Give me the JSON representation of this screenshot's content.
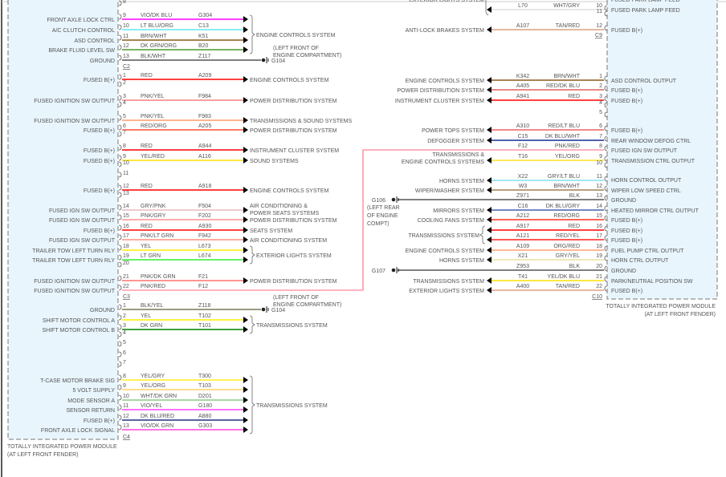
{
  "left": {
    "module_name": "TOTALLY INTEGRATED POWER MODULE",
    "module_location": "(AT LEFT FRONT FENDER)",
    "blocks": [
      {
        "connector": "C2",
        "pins": [
          {
            "pin": "8"
          },
          {
            "pin": "9",
            "label": "FRONT AXLE LOCK CTRL",
            "color": "VIO/DK BLU",
            "circuit": "G304",
            "hex": "#ff00ff"
          },
          {
            "pin": "10",
            "label": "A/C CLUTCH CONTROL",
            "color": "LT BLU/ORG",
            "circuit": "C13",
            "hex": "#5fe8f2"
          },
          {
            "pin": "11",
            "label": "ASD CONTROL",
            "color": "BRN/WHT",
            "circuit": "K51",
            "hex": "#8b5a1a"
          },
          {
            "pin": "12",
            "label": "BRAKE FLUID LEVEL SW",
            "color": "DK GRN/ORG",
            "circuit": "B20",
            "hex": "#4a9a2a"
          },
          {
            "pin": "13",
            "label": "GROUND",
            "color": "BLK/WHT",
            "circuit": "Z117",
            "hex": "#555555",
            "ground": {
              "id": "G104",
              "location": [
                "(LEFT FRONT OF",
                "ENGINE COMPARTMENT)"
              ]
            }
          }
        ],
        "groups": [
          {
            "from": 1,
            "to": 4,
            "dest": [
              "ENGINE CONTROLS SYSTEM"
            ]
          }
        ]
      },
      {
        "connector": "C3",
        "pins": [
          {
            "pin": "1",
            "label": "FUSED B(+)",
            "color": "RED",
            "circuit": "A209",
            "hex": "#ff0000",
            "dest": [
              "ENGINE CONTROLS SYSTEM"
            ]
          },
          {
            "pin": "2"
          },
          {
            "pin": "3",
            "label": "FUSED IGNITION SW OUTPUT",
            "color": "PNK/YEL",
            "circuit": "F984",
            "hex": "#ff8080",
            "dest": [
              "POWER DISTRIBUTION SYSTEM"
            ]
          },
          {
            "pin": "4"
          },
          {
            "pin": "5",
            "label": "FUSED IGNITION SW OUTPUT",
            "color": "PNK/YEL",
            "circuit": "F983",
            "hex": "#ff9a70",
            "dest": [
              "TRANSMISSIONS & SOUND SYSTEMS"
            ]
          },
          {
            "pin": "6",
            "label": "FUSED B(+)",
            "color": "RED/ORG",
            "circuit": "A205",
            "hex": "#ff5030",
            "dest": [
              "POWER DISTRIBUTION SYSTEM"
            ]
          },
          {
            "pin": "7"
          },
          {
            "pin": "8",
            "label": "FUSED B(+)",
            "color": "RED",
            "circuit": "A944",
            "hex": "#ff0000",
            "dest": [
              "INSTRUMENT CLUSTER SYSTEM"
            ]
          },
          {
            "pin": "9",
            "label": "FUSED B(+)",
            "color": "YEL/RED",
            "circuit": "A116",
            "hex": "#ffdd00",
            "dest": [
              "SOUND SYSTEMS"
            ]
          },
          {
            "pin": "10"
          },
          {
            "pin": "11"
          },
          {
            "pin": "12",
            "label": "FUSED B(+)",
            "color": "RED",
            "circuit": "A918",
            "hex": "#ff0000",
            "dest": [
              "ENGINE CONTROLS SYSTEM"
            ]
          },
          {
            "pin": "13"
          },
          {
            "pin": "14",
            "label": "FUSED IGN SW OUTPUT",
            "color": "GRY/PNK",
            "circuit": "F504",
            "hex": "#e8b8c0",
            "dest": [
              "AIR CONDITIONING &",
              "POWER SEATS SYSTEMS"
            ]
          },
          {
            "pin": "15",
            "label": "FUSED IGN SW OUTPUT",
            "color": "PNK/GRY",
            "circuit": "F202",
            "hex": "#ff9090",
            "dest": [
              "POWER DISTRIBUTION SYSTEM"
            ]
          },
          {
            "pin": "16",
            "label": "FUSED B(+)",
            "color": "RED",
            "circuit": "A930",
            "hex": "#ff0000",
            "dest": [
              "SEATS SYSTEM"
            ]
          },
          {
            "pin": "17",
            "label": "FUSED IGN SW OUTPUT",
            "color": "PNK/LT GRN",
            "circuit": "F942",
            "hex": "#ff9080",
            "dest": [
              "AIR CONDITIONING SYSTEM"
            ]
          },
          {
            "pin": "18",
            "label": "TRAILER TOW LEFT TURN RLY",
            "color": "YEL",
            "circuit": "L673",
            "hex": "#ffee00"
          },
          {
            "pin": "19",
            "label": "TRAILER TOW LEFT TURN RLY",
            "color": "LT GRN",
            "circuit": "L674",
            "hex": "#33ee33"
          },
          {
            "pin": "20"
          },
          {
            "pin": "21",
            "label": "FUSED IGNITION SW OUTPUT",
            "color": "PNK/DK GRN",
            "circuit": "F21",
            "hex": "#ff7070",
            "dest": [
              "POWER DISTRIBUTION SYSTEM"
            ]
          },
          {
            "pin": "22",
            "label": "FUSED IGNITION SW OUTPUT",
            "color": "PNK/RED",
            "circuit": "F12",
            "hex": "#ff98a8",
            "link": true
          }
        ],
        "groups": [
          {
            "from": 17,
            "to": 18,
            "dest": [
              "EXTERIOR LIGHTS SYSTEM"
            ]
          }
        ]
      },
      {
        "connector": "C4",
        "pins": [
          {
            "pin": "1",
            "label": "GROUND",
            "color": "BLK/YEL",
            "circuit": "Z118",
            "hex": "#7a7a50",
            "ground": {
              "id": "G104",
              "location": [
                "(LEFT FRONT OF",
                "ENGINE COMPARTMENT)"
              ]
            }
          },
          {
            "pin": "2",
            "label": "SHIFT MOTOR CONTROL A",
            "color": "YEL",
            "circuit": "T102",
            "hex": "#ffee00"
          },
          {
            "pin": "3",
            "label": "SHIFT MOTOR CONTROL B",
            "color": "DK GRN",
            "circuit": "T101",
            "hex": "#008000"
          },
          {
            "pin": "4"
          },
          {
            "pin": "5"
          },
          {
            "pin": "6"
          },
          {
            "pin": "7"
          },
          {
            "pin": "8",
            "label": "T-CASE MOTOR BRAKE SIG",
            "color": "YEL/GRY",
            "circuit": "T300",
            "hex": "#ffee22"
          },
          {
            "pin": "9",
            "label": "5 VOLT SUPPLY",
            "color": "YEL/ORG",
            "circuit": "T103",
            "hex": "#ffd060"
          },
          {
            "pin": "10",
            "label": "MODE SENSOR A",
            "color": "WHT/DK GRN",
            "circuit": "D201",
            "hex": "#88cc88"
          },
          {
            "pin": "11",
            "label": "SENSOR RETURN",
            "color": "VIO/YEL",
            "circuit": "G180",
            "hex": "#ff44ff"
          },
          {
            "pin": "12",
            "label": "FUSED B(+)",
            "color": "DK BLU/RED",
            "circuit": "A880",
            "hex": "#203080"
          },
          {
            "pin": "13",
            "label": "FRONT AXLE LOCK SIGNAL",
            "color": "VIO/DK GRN",
            "circuit": "G303",
            "hex": "#ff44dd"
          }
        ],
        "groups": [
          {
            "from": 1,
            "to": 2,
            "dest": [
              "TRANSMISSIONS SYSTEM"
            ]
          },
          {
            "from": 7,
            "to": 12,
            "dest": [
              "TRANSMISSIONS SYSTEM"
            ]
          }
        ]
      }
    ]
  },
  "right": {
    "module_name": "TOTALLY INTEGRATED POWER MODULE",
    "module_location": "(AT LEFT FRONT FENDER)",
    "top_cut_label": "FUSED PARK LAMP FEED",
    "top_cut_dest": "EXTERIOR LIGHTS SYSTEM",
    "blocks": [
      {
        "connector": "C9",
        "pins": [
          {
            "pin": "10",
            "label": "FUSED PARK LAMP FEED",
            "color": "WHT/GRY",
            "circuit": "L70",
            "hex": "#dddddd",
            "bracket_top": true
          },
          {
            "pin": "11"
          },
          {
            "pin": "12",
            "label": "FUSED B(+)",
            "color": "TAN/RED",
            "circuit": "A107",
            "hex": "#d8a080",
            "dest": [
              "ANTI-LOCK BRAKES SYSTEM"
            ]
          }
        ],
        "groups": []
      },
      {
        "connector": "C10",
        "pins": [
          {
            "pin": "1",
            "label": "ASD CONTROL OUTPUT",
            "color": "BRN/WHT",
            "circuit": "K342",
            "hex": "#8b5a1a",
            "dest": [
              "ENGINE CONTROLS SYSTEM"
            ]
          },
          {
            "pin": "2",
            "label": "FUSED B(+)",
            "color": "RED/DK BLU",
            "circuit": "A405",
            "hex": "#e06060",
            "dest": [
              "POWER DISTRIBUTION SYSTEM"
            ]
          },
          {
            "pin": "3",
            "label": "FUSED B(+)",
            "color": "RED",
            "circuit": "A941",
            "hex": "#ff0000",
            "dest": [
              "INSTRUMENT CLUSTER SYSTEM"
            ]
          },
          {
            "pin": "4"
          },
          {
            "pin": "5"
          },
          {
            "pin": "6",
            "label": "FUSED B(+)",
            "color": "RED/LT BLU",
            "circuit": "A310",
            "hex": "#f06060",
            "dest": [
              "POWER TOPS SYSTEM"
            ]
          },
          {
            "pin": "7",
            "label": "REAR WINDOW DEFOG CTRL",
            "color": "DK BLU/WHT",
            "circuit": "C15",
            "hex": "#103090",
            "dest": [
              "DEFOGGER SYSTEM"
            ]
          },
          {
            "pin": "8",
            "label": "FUSED IGN SW OUTPUT",
            "color": "PNK/RED",
            "circuit": "F12",
            "hex": "#ff98a8",
            "link": true
          },
          {
            "pin": "9",
            "label": "TRANSMISSION CTRL OUTPUT",
            "color": "YEL/ORG",
            "circuit": "T16",
            "hex": "#ffe020",
            "dest": [
              "TRANSMISSIONS &",
              "ENGINE CONTROLS SYSTEMS"
            ]
          },
          {
            "pin": "10"
          },
          {
            "pin": "11",
            "label": "HORN CONTROL OUTPUT",
            "color": "GRY/LT BLU",
            "circuit": "X22",
            "hex": "#80e0f0",
            "dest": [
              "HORNS SYSTEM"
            ]
          },
          {
            "pin": "12",
            "label": "WIPER LOW SPEED CTRL",
            "color": "BRN/WHT",
            "circuit": "W3",
            "hex": "#a08050",
            "dest": [
              "WIPER/WASHER SYSTEM"
            ]
          },
          {
            "pin": "13",
            "label": "GROUND",
            "color": "BLK",
            "circuit": "Z971",
            "hex": "#555555",
            "ground": {
              "id": "G106",
              "location": [
                "(LEFT REAR",
                "OF ENGINE",
                "COMPT)"
              ]
            }
          },
          {
            "pin": "14",
            "label": "HEATED MIRROR CTRL OUTPUT",
            "color": "DK BLU/GRY",
            "circuit": "C16",
            "hex": "#4060b0",
            "dest": [
              "MIRRORS SYSTEM"
            ]
          },
          {
            "pin": "15",
            "label": "FUSED B(+)",
            "color": "RED/ORG",
            "circuit": "A212",
            "hex": "#ff3020",
            "dest": [
              "COOLING FANS SYSTEM"
            ]
          },
          {
            "pin": "16",
            "label": "FUSED B(+)",
            "color": "RED",
            "circuit": "A917",
            "hex": "#ff0000"
          },
          {
            "pin": "17",
            "label": "FUSED B(+)",
            "color": "RED/YEL",
            "circuit": "A121",
            "hex": "#ff2020"
          },
          {
            "pin": "18",
            "label": "FUEL PUMP CTRL OUTPUT",
            "color": "ORG/RED",
            "circuit": "A109",
            "hex": "#ffa070",
            "dest": [
              "ENGINE CONTROLS SYSTEM"
            ]
          },
          {
            "pin": "19",
            "label": "HORN CTRL OUTPUT",
            "color": "GRY/YEL",
            "circuit": "X21",
            "hex": "#e8e0a0",
            "dest": [
              "HORNS SYSTEM"
            ]
          },
          {
            "pin": "20",
            "label": "GROUND",
            "color": "BLK",
            "circuit": "Z953",
            "hex": "#555555",
            "ground": {
              "id": "G107",
              "location": []
            }
          },
          {
            "pin": "21",
            "label": "PARK/NEUTRAL POSITION SW",
            "color": "YEL/DK BLU",
            "circuit": "T41",
            "hex": "#ffe000",
            "dest": [
              "TRANSMISSIONS SYSTEM"
            ]
          },
          {
            "pin": "22",
            "label": "FUSED B(+)",
            "color": "TAN/RED",
            "circuit": "A400",
            "hex": "#e0a080",
            "dest": [
              "EXTERIOR LIGHTS SYSTEM"
            ]
          }
        ],
        "groups": [
          {
            "from": 15,
            "to": 16,
            "dest": [
              "TRANSMISSIONS SYSTEM"
            ]
          }
        ]
      }
    ]
  }
}
